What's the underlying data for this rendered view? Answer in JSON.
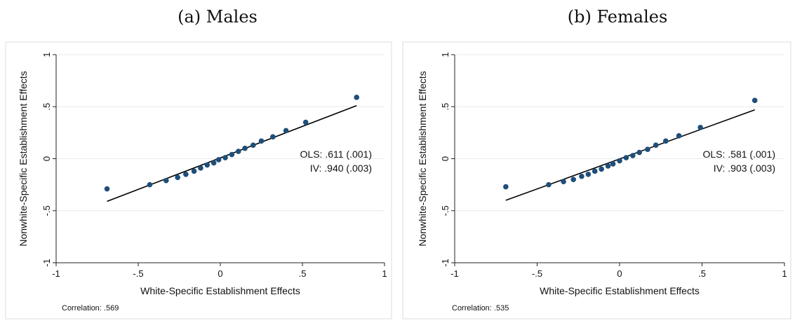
{
  "chart_data": [
    {
      "type": "scatter",
      "title": "(a) Males",
      "xlabel": "White-Specific Establishment Effects",
      "ylabel": "Nonwhite-Specific Establishment Effects",
      "xlim": [
        -1,
        1
      ],
      "ylim": [
        -1,
        1
      ],
      "xticks": [
        -1,
        -0.5,
        0,
        0.5,
        1
      ],
      "yticks": [
        -1,
        -0.5,
        0,
        0.5,
        1
      ],
      "xtick_labels": [
        "-1",
        "-.5",
        "0",
        ".5",
        "1"
      ],
      "ytick_labels": [
        "-1",
        "-.5",
        "0",
        ".5",
        "1"
      ],
      "grid": "horizontal",
      "point_color": "#1f4e79",
      "points": [
        [
          -0.69,
          -0.29
        ],
        [
          -0.43,
          -0.25
        ],
        [
          -0.33,
          -0.21
        ],
        [
          -0.26,
          -0.18
        ],
        [
          -0.21,
          -0.15
        ],
        [
          -0.16,
          -0.12
        ],
        [
          -0.12,
          -0.09
        ],
        [
          -0.08,
          -0.06
        ],
        [
          -0.04,
          -0.04
        ],
        [
          -0.01,
          -0.01
        ],
        [
          0.03,
          0.01
        ],
        [
          0.07,
          0.04
        ],
        [
          0.11,
          0.07
        ],
        [
          0.15,
          0.1
        ],
        [
          0.2,
          0.13
        ],
        [
          0.25,
          0.17
        ],
        [
          0.32,
          0.21
        ],
        [
          0.4,
          0.27
        ],
        [
          0.52,
          0.35
        ],
        [
          0.83,
          0.59
        ]
      ],
      "fit_line": [
        [
          -0.69,
          -0.41
        ],
        [
          0.83,
          0.51
        ]
      ],
      "annotations": [
        "OLS: .611 (.001)",
        "IV: .940 (.003)"
      ],
      "note": "Correlation: .569"
    },
    {
      "type": "scatter",
      "title": "(b) Females",
      "xlabel": "White-Specific Establishment Effects",
      "ylabel": "Nonwhite-Specific Establishment Effects",
      "xlim": [
        -1,
        1
      ],
      "ylim": [
        -1,
        1
      ],
      "xticks": [
        -1,
        -0.5,
        0,
        0.5,
        1
      ],
      "yticks": [
        -1,
        -0.5,
        0,
        0.5,
        1
      ],
      "xtick_labels": [
        "-1",
        "-.5",
        "0",
        ".5",
        "1"
      ],
      "ytick_labels": [
        "-1",
        "-.5",
        "0",
        ".5",
        "1"
      ],
      "grid": "horizontal",
      "point_color": "#1f4e79",
      "points": [
        [
          -0.69,
          -0.27
        ],
        [
          -0.43,
          -0.25
        ],
        [
          -0.34,
          -0.22
        ],
        [
          -0.28,
          -0.2
        ],
        [
          -0.23,
          -0.17
        ],
        [
          -0.19,
          -0.15
        ],
        [
          -0.15,
          -0.12
        ],
        [
          -0.11,
          -0.1
        ],
        [
          -0.07,
          -0.07
        ],
        [
          -0.04,
          -0.05
        ],
        [
          0.0,
          -0.02
        ],
        [
          0.04,
          0.01
        ],
        [
          0.08,
          0.03
        ],
        [
          0.12,
          0.06
        ],
        [
          0.17,
          0.09
        ],
        [
          0.22,
          0.13
        ],
        [
          0.28,
          0.17
        ],
        [
          0.36,
          0.22
        ],
        [
          0.49,
          0.3
        ],
        [
          0.82,
          0.56
        ]
      ],
      "fit_line": [
        [
          -0.69,
          -0.4
        ],
        [
          0.82,
          0.47
        ]
      ],
      "annotations": [
        "OLS: .581 (.001)",
        "IV: .903 (.003)"
      ],
      "note": "Correlation: .535"
    }
  ]
}
